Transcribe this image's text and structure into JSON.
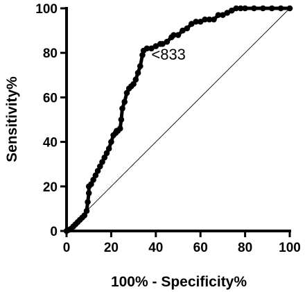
{
  "chart_data": {
    "type": "line",
    "xlabel": "100% - Specificity%",
    "ylabel": "Sensitivity%",
    "xlim": [
      0,
      100
    ],
    "ylim": [
      0,
      100
    ],
    "x_ticks": [
      "0",
      "20",
      "40",
      "60",
      "80",
      "100"
    ],
    "y_ticks": [
      "0",
      "20",
      "40",
      "60",
      "80",
      "100"
    ],
    "grid": false,
    "legend": "none",
    "series": [
      {
        "style": "solid thick line with circular markers",
        "color": "#000000",
        "points": [
          [
            0,
            0
          ],
          [
            1,
            0.5
          ],
          [
            2,
            1
          ],
          [
            3,
            2
          ],
          [
            4,
            3
          ],
          [
            5,
            4
          ],
          [
            6,
            5
          ],
          [
            7,
            6
          ],
          [
            8,
            7
          ],
          [
            9,
            9
          ],
          [
            9.5,
            13
          ],
          [
            10,
            17
          ],
          [
            10,
            20
          ],
          [
            11,
            21
          ],
          [
            12,
            23
          ],
          [
            13,
            25
          ],
          [
            14,
            27
          ],
          [
            15,
            29
          ],
          [
            16,
            31
          ],
          [
            17,
            33
          ],
          [
            18,
            35
          ],
          [
            19,
            37
          ],
          [
            20,
            40
          ],
          [
            21,
            43
          ],
          [
            22,
            44
          ],
          [
            22.5,
            45
          ],
          [
            23,
            45
          ],
          [
            24,
            46
          ],
          [
            24.5,
            50
          ],
          [
            25,
            55
          ],
          [
            26,
            58
          ],
          [
            27,
            62
          ],
          [
            28,
            64
          ],
          [
            29,
            65
          ],
          [
            30,
            66
          ],
          [
            31,
            68
          ],
          [
            32,
            71
          ],
          [
            33,
            74
          ],
          [
            34,
            79
          ],
          [
            34.5,
            81
          ],
          [
            36,
            82
          ],
          [
            38,
            82
          ],
          [
            40,
            83
          ],
          [
            42,
            84
          ],
          [
            43,
            84
          ],
          [
            45,
            85
          ],
          [
            47,
            87
          ],
          [
            48,
            88
          ],
          [
            50,
            88
          ],
          [
            52,
            90
          ],
          [
            54,
            91
          ],
          [
            56,
            93
          ],
          [
            58,
            94
          ],
          [
            60,
            94
          ],
          [
            62,
            95
          ],
          [
            64,
            95
          ],
          [
            66,
            95
          ],
          [
            68,
            97
          ],
          [
            70,
            97
          ],
          [
            72,
            98
          ],
          [
            74,
            99
          ],
          [
            76,
            100
          ],
          [
            78,
            100
          ],
          [
            80,
            100
          ],
          [
            84,
            100
          ],
          [
            88,
            100
          ],
          [
            92,
            100
          ],
          [
            96,
            100
          ],
          [
            100,
            100
          ]
        ]
      },
      {
        "style": "thin reference diagonal",
        "color": "#000000",
        "points": [
          [
            0,
            0
          ],
          [
            100,
            100
          ]
        ]
      }
    ],
    "annotations": [
      {
        "text": "<833",
        "x": 38,
        "y": 77
      }
    ]
  }
}
